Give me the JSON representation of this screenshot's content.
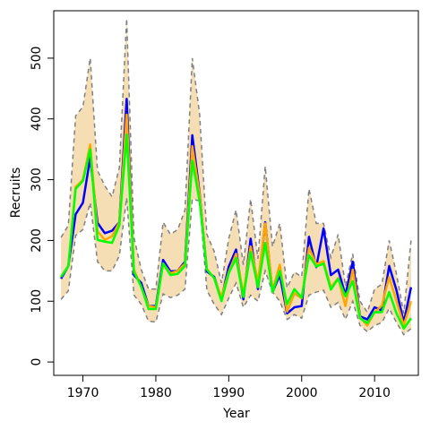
{
  "chart_data": {
    "type": "line",
    "title": "",
    "xlabel": "Year",
    "ylabel": "Recruits",
    "xlim": [
      1966,
      2016
    ],
    "ylim": [
      -22,
      578
    ],
    "xticks": [
      1970,
      1980,
      1990,
      2000,
      2010
    ],
    "yticks": [
      0,
      100,
      200,
      300,
      400,
      500
    ],
    "grid": false,
    "legend": "none",
    "x": [
      1967,
      1968,
      1969,
      1970,
      1971,
      1972,
      1973,
      1974,
      1975,
      1976,
      1977,
      1978,
      1979,
      1980,
      1981,
      1982,
      1983,
      1984,
      1985,
      1986,
      1987,
      1988,
      1989,
      1990,
      1991,
      1992,
      1993,
      1994,
      1995,
      1996,
      1997,
      1998,
      1999,
      2000,
      2001,
      2002,
      2003,
      2004,
      2005,
      2006,
      2007,
      2008,
      2009,
      2010,
      2011,
      2012,
      2013,
      2014,
      2015
    ],
    "interval": {
      "fill_color": "#f5deb3",
      "line_color": "#808080",
      "lower": [
        103,
        117,
        208,
        218,
        262,
        165,
        150,
        150,
        175,
        270,
        110,
        95,
        67,
        66,
        112,
        106,
        110,
        120,
        268,
        265,
        118,
        95,
        78,
        105,
        130,
        90,
        110,
        100,
        150,
        115,
        100,
        70,
        78,
        72,
        110,
        115,
        118,
        90,
        98,
        70,
        100,
        60,
        50,
        60,
        65,
        88,
        65,
        45,
        55
      ],
      "upper": [
        205,
        225,
        405,
        420,
        500,
        315,
        290,
        272,
        320,
        565,
        205,
        152,
        120,
        120,
        230,
        210,
        218,
        250,
        500,
        408,
        210,
        182,
        130,
        203,
        250,
        160,
        268,
        170,
        322,
        190,
        228,
        122,
        148,
        140,
        285,
        228,
        228,
        172,
        210,
        125,
        178,
        100,
        82,
        120,
        128,
        200,
        145,
        80,
        200
      ]
    },
    "series": [
      {
        "color": "#0000ff",
        "values": [
          137,
          158,
          243,
          262,
          336,
          229,
          212,
          216,
          230,
          433,
          143,
          130,
          92,
          92,
          168,
          149,
          150,
          165,
          373,
          278,
          149,
          140,
          104,
          157,
          185,
          103,
          203,
          120,
          230,
          115,
          143,
          80,
          90,
          92,
          206,
          156,
          220,
          143,
          152,
          110,
          165,
          75,
          70,
          90,
          85,
          158,
          118,
          65,
          123
        ]
      },
      {
        "color": "#ffa500",
        "values": [
          140,
          158,
          288,
          300,
          358,
          215,
          201,
          207,
          230,
          407,
          152,
          123,
          92,
          90,
          162,
          146,
          150,
          162,
          355,
          275,
          153,
          138,
          107,
          148,
          178,
          112,
          190,
          132,
          228,
          118,
          160,
          83,
          113,
          105,
          188,
          161,
          166,
          123,
          138,
          92,
          152,
          74,
          60,
          82,
          93,
          140,
          100,
          60,
          100
        ]
      },
      {
        "color": "#00ff00",
        "values": [
          140,
          158,
          285,
          298,
          350,
          201,
          198,
          196,
          225,
          374,
          148,
          124,
          87,
          87,
          162,
          143,
          145,
          158,
          331,
          265,
          152,
          138,
          100,
          146,
          171,
          107,
          181,
          123,
          196,
          115,
          150,
          95,
          120,
          106,
          176,
          157,
          162,
          119,
          137,
          108,
          133,
          72,
          64,
          82,
          82,
          115,
          80,
          55,
          72
        ]
      }
    ]
  }
}
